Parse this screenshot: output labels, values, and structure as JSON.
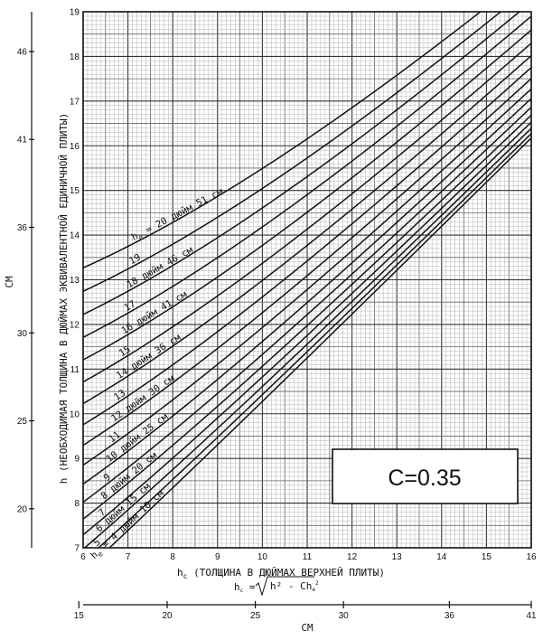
{
  "chart_data": {
    "type": "line",
    "x_axis": {
      "label": "h",
      "label_sub": "c",
      "label_rest": " (ТОЛЩИНА В ДЮЙМАХ ВЕРХНЕЙ ПЛИТЫ)",
      "range": [
        6,
        16
      ],
      "ticks": [
        "6",
        "7",
        "8",
        "9",
        "10",
        "11",
        "12",
        "13",
        "14",
        "15",
        "16"
      ]
    },
    "y_axis": {
      "label": "h (НЕОБХОДИМАЯ ТОЛЩИНА В ДЮЙМАХ ЭКВИВАЛЕНТНОЙ ЕДИНИЧНОЙ ПЛИТЫ)",
      "range": [
        7,
        19
      ],
      "ticks": [
        "7",
        "8",
        "9",
        "10",
        "11",
        "12",
        "13",
        "14",
        "15",
        "16",
        "17",
        "18",
        "19"
      ]
    },
    "y_axis_cm": {
      "label": "CM",
      "ticks": [
        "20",
        "25",
        "30",
        "36",
        "41",
        "46"
      ],
      "tick_inches": [
        7.874,
        9.843,
        11.811,
        14.173,
        16.142,
        18.11
      ]
    },
    "x_axis_cm": {
      "label": "CM",
      "ticks": [
        "15",
        "20",
        "25",
        "30",
        "36",
        "41"
      ],
      "tick_inches": [
        5.906,
        7.874,
        9.843,
        11.811,
        14.173,
        16.142
      ]
    },
    "formula": {
      "lhs": "h",
      "lhs_sub": "c",
      "eq": " = ",
      "radicand": "h² - Ch",
      "radicand_sub": "e",
      "radicand_sup": "2"
    },
    "parameter_box": "C=0.35",
    "C": 0.35,
    "series": [
      {
        "he": 4,
        "label": "h",
        "label_sub": "e",
        "label_rest": " = 4 дюйм 10 см"
      },
      {
        "he": 5,
        "label": "5"
      },
      {
        "he": 6,
        "label": "6 дюйм 15 см"
      },
      {
        "he": 7,
        "label": "7"
      },
      {
        "he": 8,
        "label": "8 дюйм 20 см"
      },
      {
        "he": 9,
        "label": "9"
      },
      {
        "he": 10,
        "label": "10 дюйм 25 см"
      },
      {
        "he": 11,
        "label": "11"
      },
      {
        "he": 12,
        "label": "12 дюйм 30 см"
      },
      {
        "he": 13,
        "label": "13"
      },
      {
        "he": 14,
        "label": "14 дюйм 36 см"
      },
      {
        "he": 15,
        "label": "15"
      },
      {
        "he": 16,
        "label": "16 дюйм 41 см"
      },
      {
        "he": 17,
        "label": "17"
      },
      {
        "he": 18,
        "label": "18 дюйм 46 см"
      },
      {
        "he": 19,
        "label": "19"
      },
      {
        "he": 20,
        "label": "h",
        "label_sub": "e",
        "label_rest": " = 20 дюйм 51 см"
      }
    ],
    "grid": true
  },
  "colors": {
    "ink": "#111111",
    "grid_minor": "#9a9a9a",
    "grid_major": "#333333",
    "paper": "#ffffff"
  }
}
